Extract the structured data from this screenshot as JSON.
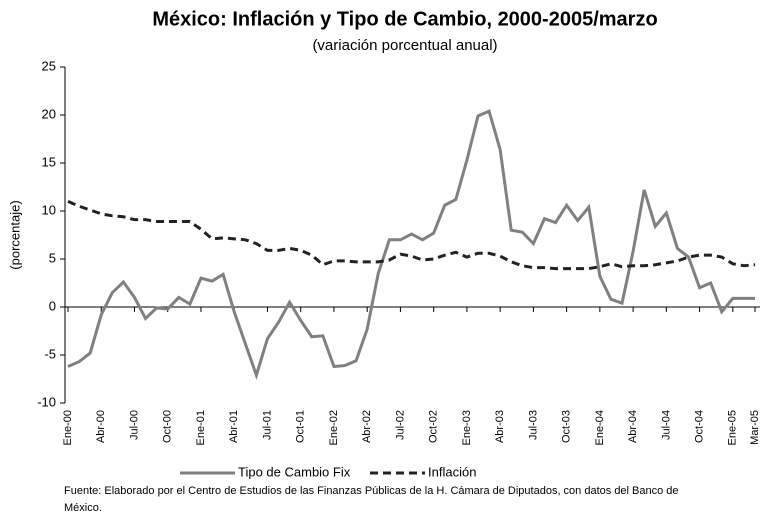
{
  "chart_data": {
    "type": "line",
    "title": "México: Inflación y Tipo de Cambio, 2000-2005/marzo",
    "subtitle": "(variación porcentual anual)",
    "y_label": "(porcentaje)",
    "source": "Fuente: Elaborado por el Centro de Estudios de las Finanzas Públicas de la H. Cámara de Diputados, con datos del Banco de México.",
    "categories": [
      "Ene-00",
      null,
      null,
      "Abr-00",
      null,
      null,
      "Jul-00",
      null,
      null,
      "Oct-00",
      null,
      null,
      "Ene-01",
      null,
      null,
      "Abr-01",
      null,
      null,
      "Jul-01",
      null,
      null,
      "Oct-01",
      null,
      null,
      "Ene-02",
      null,
      null,
      "Abr-02",
      null,
      null,
      "Jul-02",
      null,
      null,
      "Oct-02",
      null,
      null,
      "Ene-03",
      null,
      null,
      "Abr-03",
      null,
      null,
      "Jul-03",
      null,
      null,
      "Oct-03",
      null,
      null,
      "Ene-04",
      null,
      null,
      "Abr-04",
      null,
      null,
      "Jul-04",
      null,
      null,
      "Oct-04",
      null,
      null,
      "Ene-05",
      null,
      "Mar-05"
    ],
    "series": [
      {
        "name": "Tipo de Cambio Fix",
        "color": "#808080",
        "dash": false,
        "values": [
          -6.2,
          -5.7,
          -4.8,
          -0.8,
          1.5,
          2.6,
          1.0,
          -1.2,
          -0.1,
          -0.2,
          1.0,
          0.3,
          3.0,
          2.7,
          3.4,
          -0.5,
          -3.8,
          -7.1,
          -3.3,
          -1.6,
          0.5,
          -1.4,
          -3.1,
          -3.0,
          -6.2,
          -6.1,
          -5.6,
          -2.3,
          3.5,
          7.0,
          7.0,
          7.6,
          7.0,
          7.7,
          10.6,
          11.2,
          15.3,
          19.9,
          20.4,
          16.4,
          8.0,
          7.8,
          6.6,
          9.2,
          8.8,
          10.6,
          9.0,
          10.4,
          3.2,
          0.8,
          0.4,
          5.8,
          12.2,
          8.4,
          9.8,
          6.1,
          5.2,
          2.0,
          2.5,
          -0.5,
          0.9,
          0.9,
          0.9
        ]
      },
      {
        "name": "Inflación",
        "color": "#222222",
        "dash": true,
        "values": [
          11.0,
          10.5,
          10.1,
          9.7,
          9.5,
          9.4,
          9.1,
          9.1,
          8.9,
          8.9,
          8.9,
          8.9,
          8.1,
          7.1,
          7.2,
          7.1,
          7.0,
          6.6,
          5.9,
          5.9,
          6.1,
          5.9,
          5.4,
          4.4,
          4.8,
          4.8,
          4.7,
          4.7,
          4.7,
          4.9,
          5.5,
          5.3,
          4.9,
          5.0,
          5.4,
          5.7,
          5.2,
          5.6,
          5.6,
          5.3,
          4.7,
          4.3,
          4.1,
          4.1,
          4.0,
          4.0,
          4.0,
          4.0,
          4.2,
          4.5,
          4.2,
          4.3,
          4.3,
          4.4,
          4.6,
          4.8,
          5.2,
          5.4,
          5.4,
          5.2,
          4.5,
          4.3,
          4.4
        ]
      }
    ],
    "ylim": [
      -10,
      25
    ],
    "yticks": [
      -10,
      -5,
      0,
      5,
      10,
      15,
      20,
      25
    ],
    "grid": false
  }
}
